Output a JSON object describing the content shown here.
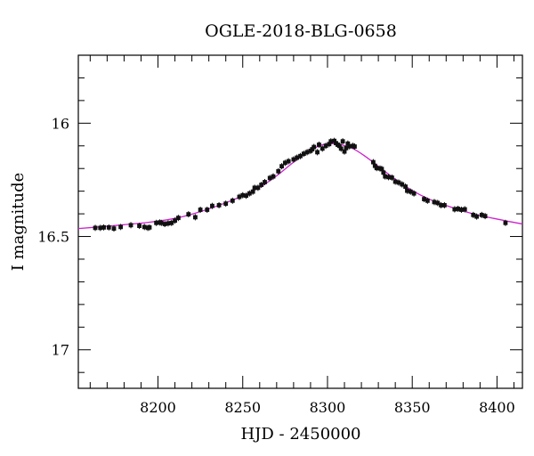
{
  "chart_data": {
    "type": "scatter",
    "title": "OGLE-2018-BLG-0658",
    "xlabel": "HJD - 2450000",
    "ylabel": "I magnitude",
    "xlim": [
      8153,
      8415
    ],
    "ylim": [
      17.17,
      15.7
    ],
    "y_inverted": true,
    "x_major_ticks": [
      8200,
      8250,
      8300,
      8350,
      8400
    ],
    "x_tick_labels": [
      "8200",
      "8250",
      "8300",
      "8350",
      "8400"
    ],
    "y_major_ticks": [
      16,
      16.5,
      17
    ],
    "y_tick_labels": [
      "16",
      "16.5",
      "17"
    ],
    "grid": false,
    "colors": {
      "points": "#111111",
      "model": "#cc22cc",
      "axes": "#000000"
    },
    "series": [
      {
        "kind": "observations",
        "x": [
          8163,
          8166,
          8168,
          8171,
          8174,
          8178,
          8184,
          8189,
          8192,
          8194,
          8195,
          8199,
          8201,
          8202,
          8204,
          8206,
          8208,
          8210,
          8212,
          8218,
          8222,
          8225,
          8229,
          8232,
          8236,
          8240,
          8244,
          8248,
          8250,
          8252,
          8254,
          8256,
          8257,
          8259,
          8261,
          8263,
          8266,
          8268,
          8271,
          8273,
          8275,
          8277,
          8280,
          8282,
          8284,
          8286,
          8288,
          8290,
          8291,
          8292,
          8294,
          8295,
          8297,
          8299,
          8301,
          8302,
          8304,
          8305,
          8306,
          8307,
          8308,
          8309,
          8310,
          8311,
          8312,
          8313,
          8315,
          8316,
          8327,
          8328,
          8329,
          8331,
          8332,
          8333,
          8334,
          8336,
          8338,
          8340,
          8342,
          8344,
          8346,
          8347,
          8349,
          8351,
          8357,
          8359,
          8363,
          8365,
          8367,
          8369,
          8375,
          8377,
          8379,
          8381,
          8386,
          8388,
          8391,
          8393,
          8405
        ],
        "y": [
          16.462,
          16.462,
          16.46,
          16.46,
          16.465,
          16.458,
          16.45,
          16.453,
          16.458,
          16.462,
          16.46,
          16.44,
          16.438,
          16.44,
          16.445,
          16.442,
          16.44,
          16.43,
          16.418,
          16.402,
          16.415,
          16.382,
          16.382,
          16.365,
          16.362,
          16.355,
          16.342,
          16.325,
          16.318,
          16.32,
          16.31,
          16.302,
          16.285,
          16.285,
          16.272,
          16.26,
          16.242,
          16.235,
          16.212,
          16.19,
          16.175,
          16.168,
          16.16,
          16.152,
          16.145,
          16.135,
          16.128,
          16.122,
          16.115,
          16.105,
          16.128,
          16.095,
          16.112,
          16.1,
          16.092,
          16.08,
          16.078,
          16.088,
          16.095,
          16.1,
          16.112,
          16.08,
          16.125,
          16.11,
          16.09,
          16.102,
          16.1,
          16.103,
          16.172,
          16.188,
          16.198,
          16.2,
          16.202,
          16.218,
          16.235,
          16.238,
          16.24,
          16.258,
          16.262,
          16.27,
          16.28,
          16.298,
          16.302,
          16.31,
          16.335,
          16.342,
          16.348,
          16.352,
          16.362,
          16.362,
          16.38,
          16.378,
          16.382,
          16.38,
          16.405,
          16.412,
          16.405,
          16.41,
          16.44
        ]
      },
      {
        "kind": "model",
        "x": [
          8153,
          8165,
          8180,
          8195,
          8210,
          8222,
          8235,
          8248,
          8260,
          8270,
          8280,
          8290,
          8297,
          8302,
          8308,
          8315,
          8322,
          8330,
          8340,
          8350,
          8360,
          8372,
          8385,
          8398,
          8415
        ],
        "y": [
          16.465,
          16.458,
          16.448,
          16.437,
          16.42,
          16.397,
          16.365,
          16.327,
          16.283,
          16.232,
          16.172,
          16.12,
          16.095,
          16.09,
          16.095,
          16.112,
          16.145,
          16.19,
          16.247,
          16.297,
          16.335,
          16.368,
          16.398,
          16.42,
          16.445
        ]
      }
    ]
  }
}
